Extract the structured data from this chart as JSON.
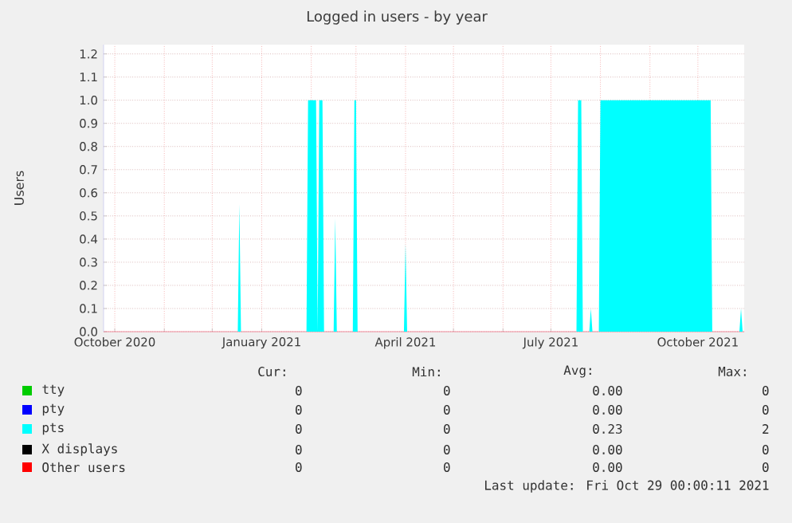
{
  "chart_data": {
    "type": "area",
    "title": "Logged in users - by year",
    "ylabel": "Users",
    "xlim": [
      "2020-09-24",
      "2021-10-30"
    ],
    "xticks": [
      {
        "value": "2020-10-01",
        "label": "October 2020"
      },
      {
        "value": "2020-11-01",
        "label": null
      },
      {
        "value": "2020-12-01",
        "label": null
      },
      {
        "value": "2021-01-01",
        "label": "January 2021"
      },
      {
        "value": "2021-02-01",
        "label": null
      },
      {
        "value": "2021-03-01",
        "label": null
      },
      {
        "value": "2021-04-01",
        "label": "April 2021"
      },
      {
        "value": "2021-05-01",
        "label": null
      },
      {
        "value": "2021-06-01",
        "label": null
      },
      {
        "value": "2021-07-01",
        "label": "July 2021"
      },
      {
        "value": "2021-08-01",
        "label": null
      },
      {
        "value": "2021-09-01",
        "label": null
      },
      {
        "value": "2021-10-01",
        "label": "October 2021"
      }
    ],
    "ylim": [
      0,
      1.24
    ],
    "yticks": [
      {
        "value": 0,
        "label": "0.0"
      },
      {
        "value": 0.1,
        "label": "0.1"
      },
      {
        "value": 0.2,
        "label": "0.2"
      },
      {
        "value": 0.3,
        "label": "0.3"
      },
      {
        "value": 0.4,
        "label": "0.4"
      },
      {
        "value": 0.5,
        "label": "0.5"
      },
      {
        "value": 0.6,
        "label": "0.6"
      },
      {
        "value": 0.7,
        "label": "0.7"
      },
      {
        "value": 0.8,
        "label": "0.8"
      },
      {
        "value": 0.9,
        "label": "0.9"
      },
      {
        "value": 1.0,
        "label": "1.0"
      },
      {
        "value": 1.1,
        "label": "1.1"
      },
      {
        "value": 1.2,
        "label": "1.2"
      }
    ],
    "grid": true,
    "legend": "bottom",
    "series": [
      {
        "name": "tty",
        "color": "#00cc00"
      },
      {
        "name": "pty",
        "color": "#0000ff"
      },
      {
        "name": "pts",
        "color": "#00ffff",
        "x": [
          "2020-09-24",
          "2020-12-17",
          "2020-12-18",
          "2020-12-19",
          "2021-01-29",
          "2021-01-30",
          "2021-02-04",
          "2021-02-05",
          "2021-02-06",
          "2021-02-08",
          "2021-02-09",
          "2021-02-15",
          "2021-02-16",
          "2021-02-17",
          "2021-02-27",
          "2021-02-28",
          "2021-03-01",
          "2021-03-02",
          "2021-03-31",
          "2021-04-01",
          "2021-04-02",
          "2021-07-17",
          "2021-07-18",
          "2021-07-20",
          "2021-07-21",
          "2021-07-25",
          "2021-07-26",
          "2021-07-27",
          "2021-07-31",
          "2021-08-01",
          "2021-10-09",
          "2021-10-10",
          "2021-10-27",
          "2021-10-28",
          "2021-10-29"
        ],
        "values": [
          0,
          0,
          0.55,
          0,
          0,
          1,
          1,
          0,
          1,
          1,
          0,
          0,
          0.49,
          0,
          0,
          1,
          1,
          0,
          0,
          0.38,
          0,
          0,
          1,
          1,
          0,
          0,
          0.1,
          0,
          0,
          1,
          1,
          0,
          0,
          0.1,
          0
        ]
      },
      {
        "name": "X displays",
        "color": "#000000"
      },
      {
        "name": "Other users",
        "color": "#ff0000"
      }
    ],
    "annotations": [
      "Cur:",
      "Min:",
      "Avg:",
      "Max:",
      "0",
      "0",
      "0.00",
      "0",
      "0",
      "0",
      "0.00",
      "0",
      "0",
      "0",
      "0.23",
      "2",
      "0",
      "0",
      "0.00",
      "0",
      "0",
      "0",
      "0.00",
      "0",
      "Last update: Fri Oct 29 00:00:11 2021"
    ]
  }
}
